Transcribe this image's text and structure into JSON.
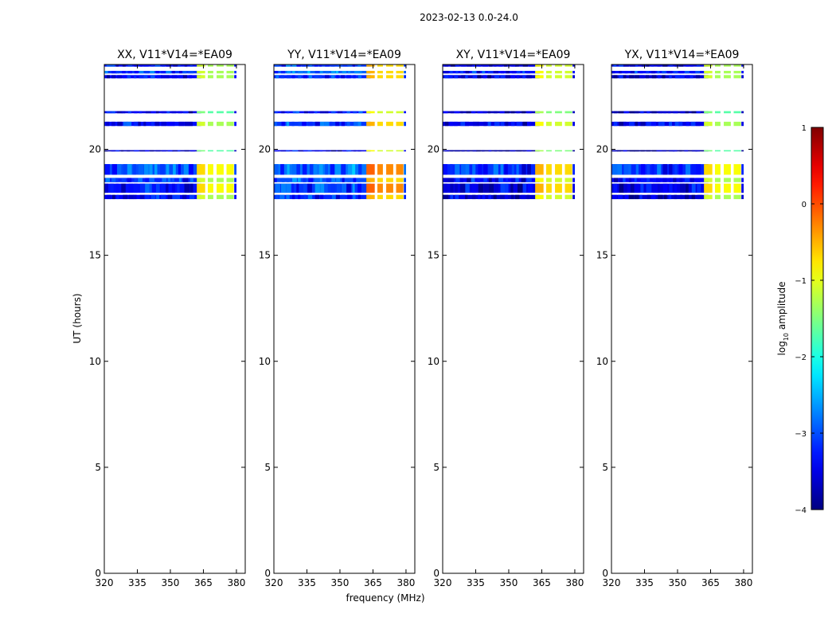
{
  "chart_data": {
    "type": "heatmap",
    "suptitle": "2023-02-13 0.0-24.0",
    "xlabel": "frequency (MHz)",
    "ylabel": "UT (hours)",
    "xlim": [
      320,
      384
    ],
    "ylim": [
      0,
      24
    ],
    "xticks": [
      320,
      335,
      350,
      365,
      380
    ],
    "yticks": [
      0,
      5,
      10,
      15,
      20
    ],
    "panels": [
      {
        "title": "XX, V11*V14=*EA09",
        "baseline_level": -3.3,
        "rfi_level": -1.3
      },
      {
        "title": "YY, V11*V14=*EA09",
        "baseline_level": -3.1,
        "rfi_level": -0.7
      },
      {
        "title": "XY, V11*V14=*EA09",
        "baseline_level": -3.5,
        "rfi_level": -1.1
      },
      {
        "title": "YX, V11*V14=*EA09",
        "baseline_level": -3.5,
        "rfi_level": -1.3
      }
    ],
    "time_bands": [
      {
        "from": 23.35,
        "to": 23.5,
        "level": -3.3
      },
      {
        "from": 23.58,
        "to": 23.7,
        "level": -3.0
      },
      {
        "from": 23.9,
        "to": 24.0,
        "level": -3.2
      },
      {
        "from": 21.7,
        "to": 21.8,
        "level": -3.4
      },
      {
        "from": 21.1,
        "to": 21.3,
        "level": -3.2
      },
      {
        "from": 19.9,
        "to": 19.96,
        "level": -3.6
      },
      {
        "from": 18.8,
        "to": 19.3,
        "level": -2.9
      },
      {
        "from": 18.45,
        "to": 18.65,
        "level": -3.1
      },
      {
        "from": 17.95,
        "to": 18.38,
        "level": -3.2
      },
      {
        "from": 17.65,
        "to": 17.85,
        "level": -3.3
      }
    ],
    "rfi_columns": [
      {
        "from": 362.0,
        "to": 365.8
      },
      {
        "from": 367.0,
        "to": 369.5
      },
      {
        "from": 371.0,
        "to": 374.2
      },
      {
        "from": 375.5,
        "to": 378.8
      }
    ],
    "colorbar": {
      "label_prefix": "log",
      "label_subscript": "10",
      "label_suffix": " amplitude",
      "range": [
        -4,
        1
      ],
      "ticks": [
        "1",
        "0",
        "−1",
        "−2",
        "−3",
        "−4"
      ],
      "tick_values": [
        1,
        0,
        -1,
        -2,
        -3,
        -4
      ],
      "colormap": "jet"
    }
  }
}
